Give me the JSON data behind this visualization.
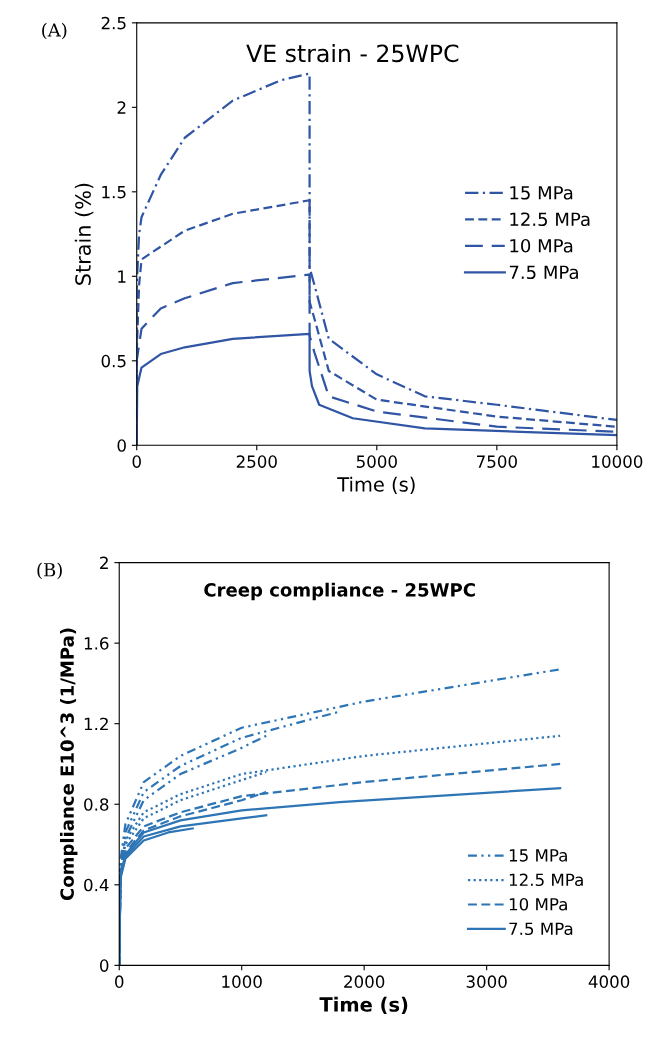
{
  "chart_data": [
    {
      "type": "line",
      "title": "VE strain - 25WPC",
      "xlabel": "Time (s)",
      "ylabel": "Strain (%)",
      "annotations": [
        "(A)"
      ],
      "xlim": [
        0,
        10000
      ],
      "xticks": [
        0,
        2500,
        5000,
        7500,
        10000
      ],
      "ylim": [
        0,
        2.5
      ],
      "yticks": [
        0,
        0.5,
        1,
        1.5,
        2,
        2.5
      ],
      "grid": false,
      "legend": "right",
      "series": [
        {
          "name": "15 MPa",
          "color": "#2f55a4",
          "line_style": "dashdot",
          "x": [
            0,
            0,
            50,
            100,
            500,
            1000,
            2000,
            3000,
            3600,
            3600,
            3700,
            4000,
            5000,
            6000,
            7500,
            10000
          ],
          "values": [
            0,
            0.95,
            1.25,
            1.35,
            1.6,
            1.82,
            2.04,
            2.16,
            2.2,
            1.05,
            0.95,
            0.63,
            0.42,
            0.29,
            0.24,
            0.15
          ]
        },
        {
          "name": "12.5 MPa",
          "color": "#2f55a4",
          "line_style": "dashed",
          "x": [
            0,
            0,
            50,
            100,
            1000,
            2000,
            3600,
            3600,
            3700,
            4000,
            5000,
            7500,
            10000
          ],
          "values": [
            0,
            0.55,
            0.95,
            1.1,
            1.27,
            1.37,
            1.45,
            0.85,
            0.75,
            0.44,
            0.27,
            0.17,
            0.11
          ]
        },
        {
          "name": "10 MPa",
          "color": "#2f55a4",
          "line_style": "longdash",
          "x": [
            0,
            0,
            100,
            500,
            1000,
            2000,
            3600,
            3600,
            3700,
            4000,
            5000,
            7500,
            10000
          ],
          "values": [
            0,
            0.5,
            0.69,
            0.81,
            0.87,
            0.96,
            1.01,
            0.65,
            0.55,
            0.29,
            0.2,
            0.11,
            0.08
          ]
        },
        {
          "name": "7.5 MPa",
          "color": "#2f55a4",
          "line_style": "solid",
          "x": [
            0,
            10,
            100,
            500,
            1000,
            2000,
            3600,
            3600,
            3650,
            3800,
            4500,
            6000,
            8000,
            10000
          ],
          "values": [
            0,
            0.35,
            0.46,
            0.54,
            0.58,
            0.63,
            0.66,
            0.44,
            0.35,
            0.24,
            0.16,
            0.1,
            0.08,
            0.06
          ]
        }
      ]
    },
    {
      "type": "line",
      "title": "Creep compliance - 25WPC",
      "xlabel": "Time (s)",
      "ylabel": "Compliance E10^3 (1/MPa)",
      "annotations": [
        "(B)"
      ],
      "xlim": [
        0,
        4000
      ],
      "xticks": [
        0,
        1000,
        2000,
        3000,
        4000
      ],
      "ylim": [
        0,
        2
      ],
      "yticks": [
        0,
        0.4,
        0.8,
        1.2,
        1.6,
        2
      ],
      "grid": false,
      "legend": "lower right",
      "series": [
        {
          "name": "15 MPa",
          "color": "#2e75b6",
          "line_style": "dashdotdot",
          "x": [
            0,
            10,
            50,
            200,
            500,
            1000,
            2000,
            3600
          ],
          "values": [
            0,
            0.52,
            0.7,
            0.91,
            1.04,
            1.18,
            1.31,
            1.47
          ]
        },
        {
          "color": "#2e75b6",
          "line_style": "dashdotdot",
          "x": [
            0,
            10,
            50,
            200,
            500,
            1000,
            1800
          ],
          "values": [
            0,
            0.5,
            0.66,
            0.86,
            0.99,
            1.13,
            1.26
          ]
        },
        {
          "color": "#2e75b6",
          "line_style": "dashdotdot",
          "x": [
            0,
            10,
            50,
            200,
            500,
            1000,
            1200
          ],
          "values": [
            0,
            0.48,
            0.63,
            0.82,
            0.95,
            1.08,
            1.14
          ]
        },
        {
          "name": "12.5 MPa",
          "color": "#2e75b6",
          "line_style": "dotted",
          "x": [
            0,
            10,
            50,
            200,
            500,
            1000,
            2000,
            3600
          ],
          "values": [
            0,
            0.48,
            0.62,
            0.76,
            0.85,
            0.95,
            1.04,
            1.14
          ]
        },
        {
          "color": "#2e75b6",
          "line_style": "dotted",
          "x": [
            0,
            10,
            50,
            200,
            500,
            1000,
            1200
          ],
          "values": [
            0,
            0.47,
            0.6,
            0.73,
            0.82,
            0.92,
            0.96
          ]
        },
        {
          "name": "10 MPa",
          "color": "#2e75b6",
          "line_style": "dashed",
          "x": [
            0,
            10,
            50,
            200,
            500,
            1000,
            2000,
            3600
          ],
          "values": [
            0,
            0.46,
            0.58,
            0.69,
            0.76,
            0.84,
            0.91,
            1.0
          ]
        },
        {
          "color": "#2e75b6",
          "line_style": "dashed",
          "x": [
            0,
            10,
            50,
            200,
            500,
            1000,
            1200
          ],
          "values": [
            0,
            0.45,
            0.56,
            0.67,
            0.74,
            0.82,
            0.86
          ]
        },
        {
          "name": "7.5 MPa",
          "color": "#2e75b6",
          "line_style": "solid",
          "x": [
            0,
            10,
            50,
            200,
            500,
            1000,
            1800,
            3600
          ],
          "values": [
            0,
            0.45,
            0.55,
            0.66,
            0.72,
            0.77,
            0.81,
            0.88
          ]
        },
        {
          "color": "#2e75b6",
          "line_style": "solid",
          "x": [
            0,
            10,
            50,
            200,
            500,
            1000,
            1200
          ],
          "values": [
            0,
            0.44,
            0.54,
            0.64,
            0.69,
            0.73,
            0.745
          ]
        },
        {
          "color": "#2e75b6",
          "line_style": "solid",
          "x": [
            0,
            10,
            50,
            200,
            400,
            600
          ],
          "values": [
            0,
            0.43,
            0.53,
            0.62,
            0.66,
            0.68
          ]
        }
      ]
    }
  ]
}
